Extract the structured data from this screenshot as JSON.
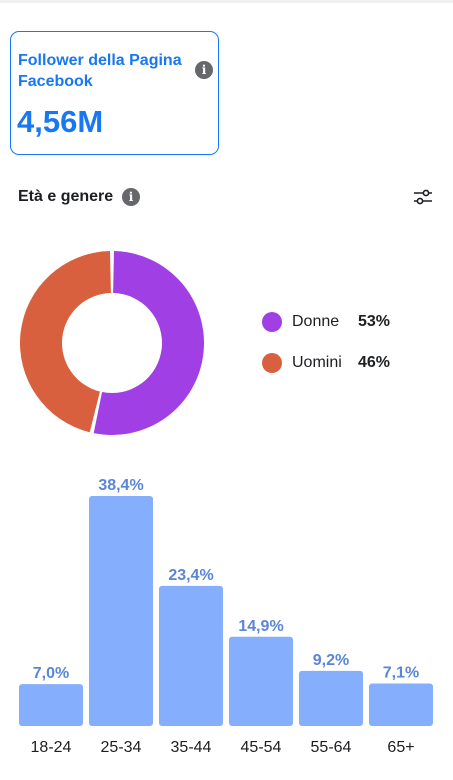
{
  "card": {
    "title": "Follower della Pagina Facebook",
    "value": "4,56M",
    "info_icon": "info-icon"
  },
  "section": {
    "title": "Età e genere",
    "info_icon": "info-icon",
    "filter_icon": "filter-sliders-icon"
  },
  "colors": {
    "accent": "#1877f2",
    "women": "#a040e4",
    "men": "#d9603f",
    "bars": "#85aefc",
    "bar_labels": "#5a86d8"
  },
  "chart_data": [
    {
      "type": "pie",
      "donut": true,
      "labels": [
        "Donne",
        "Uomini"
      ],
      "values": [
        53,
        46
      ],
      "display_values": [
        "53%",
        "46%"
      ],
      "colors": [
        "#a040e4",
        "#d9603f"
      ],
      "legend": "right"
    },
    {
      "type": "bar",
      "categories": [
        "18-24",
        "25-34",
        "35-44",
        "45-54",
        "55-64",
        "65+"
      ],
      "values": [
        7.0,
        38.4,
        23.4,
        14.9,
        9.2,
        7.1
      ],
      "data_labels": [
        "7,0%",
        "38,4%",
        "23,4%",
        "14,9%",
        "9,2%",
        "7,1%"
      ],
      "ylim": [
        0,
        38.4
      ],
      "grid": false
    }
  ]
}
